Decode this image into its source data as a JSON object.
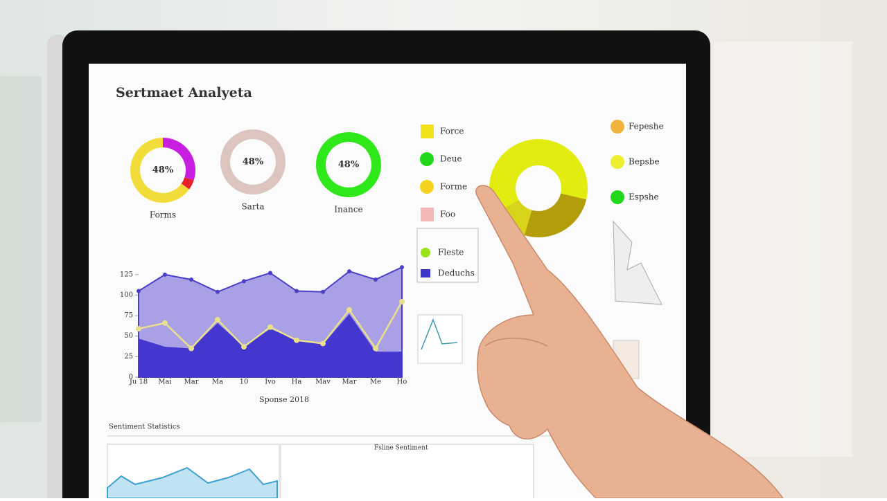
{
  "header": {
    "title": "Sertmaet Analyeta"
  },
  "donuts": [
    {
      "label": "Forms",
      "center_text": "48%",
      "segments": [
        {
          "value": 30,
          "color": "#c81ee0"
        },
        {
          "value": 5,
          "color": "#e8202a"
        },
        {
          "value": 65,
          "color": "#f2dc3a"
        }
      ]
    },
    {
      "label": "Sarta",
      "center_text": "48%",
      "segments": [
        {
          "value": 100,
          "color": "#dcc4bf"
        }
      ]
    },
    {
      "label": "Inance",
      "center_text": "48%",
      "segments": [
        {
          "value": 100,
          "color": "#2ee81a"
        }
      ]
    }
  ],
  "legend": [
    {
      "label": "Force",
      "color": "#f2e21c"
    },
    {
      "label": "Deue",
      "color": "#22d81a"
    },
    {
      "label": "Forme",
      "color": "#f5d21e"
    },
    {
      "label": "Foo",
      "color": "#f4b8b8"
    }
  ],
  "legend_box": [
    {
      "label": "Fleste",
      "color": "#9ae31a"
    },
    {
      "label": "Deduchs",
      "color": "#3d37c9"
    }
  ],
  "big_donut": {
    "segments": [
      {
        "value": 62,
        "color": "#e2ec10"
      },
      {
        "value": 26,
        "color": "#b39d0a"
      },
      {
        "value": 12,
        "color": "#d8d41a"
      }
    ]
  },
  "right_legend": [
    {
      "label": "Fepeshe",
      "color": "#f0b43a"
    },
    {
      "label": "Bepsbe",
      "color": "#eeee30"
    },
    {
      "label": "Espshe",
      "color": "#22d81a"
    }
  ],
  "area_chart": {
    "ylim": [
      0,
      135
    ],
    "yticks": [
      0,
      25,
      50,
      75,
      100,
      125
    ],
    "x_labels": [
      "Ju 18",
      "Mai",
      "Mar",
      "Ma",
      "10",
      "Ivo",
      "Ha",
      "Mav",
      "Mar",
      "Me",
      "Ho"
    ],
    "x_title": "Sponse 2018",
    "series": [
      {
        "color": "#a9a0e6",
        "values": [
          105,
          125,
          119,
          104,
          117,
          127,
          105,
          104,
          129,
          119,
          134
        ]
      },
      {
        "color": "#4337d0",
        "values": [
          47,
          37,
          35,
          66,
          37,
          59,
          45,
          40,
          77,
          31,
          31
        ]
      }
    ],
    "line": {
      "color": "#e8e08a",
      "values": [
        59,
        66,
        35,
        70,
        37,
        61,
        45,
        41,
        82,
        35,
        92
      ]
    }
  },
  "bottom": {
    "title": "Sentiment Statistics",
    "panel_title": "Fsline Sentiment"
  }
}
